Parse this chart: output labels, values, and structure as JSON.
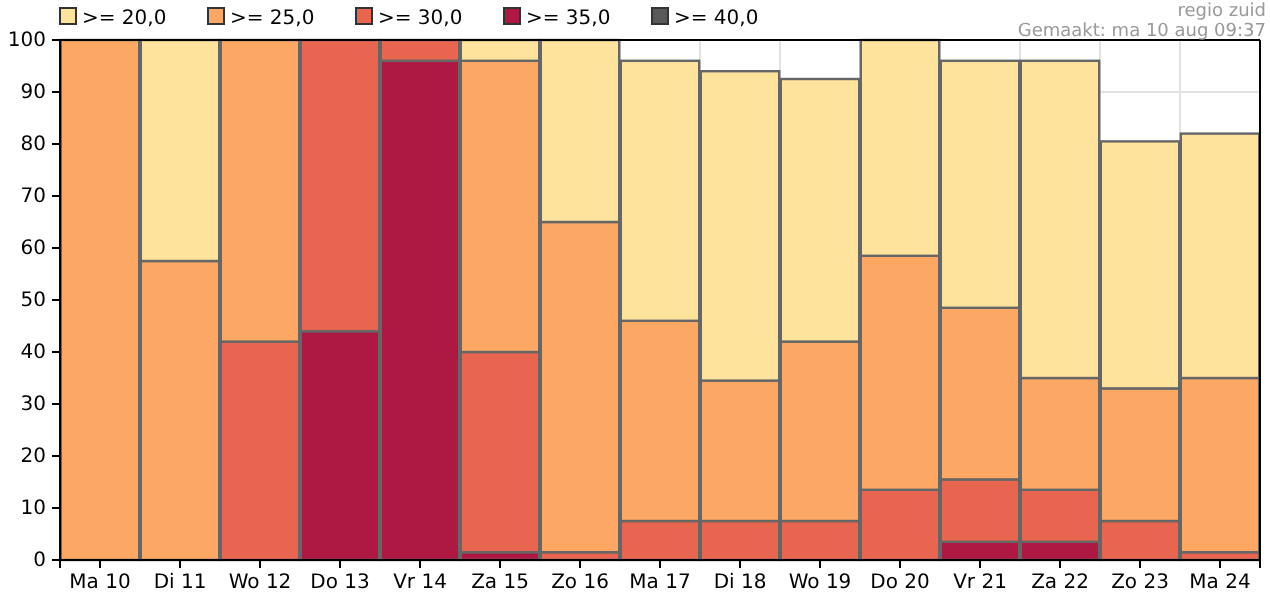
{
  "chart_data": {
    "type": "bar",
    "stacked": true,
    "categories": [
      "Ma 10",
      "Di 11",
      "Wo 12",
      "Do 13",
      "Vr 14",
      "Za 15",
      "Zo 16",
      "Ma 17",
      "Di 18",
      "Wo 19",
      "Do 20",
      "Vr 21",
      "Za 22",
      "Zo 23",
      "Ma 24"
    ],
    "series": [
      {
        "name": ">= 40,0",
        "color": "#5a5a5a",
        "values": [
          0,
          0,
          0,
          0,
          0,
          0,
          0,
          0,
          0,
          0,
          0,
          0,
          0,
          0,
          0
        ]
      },
      {
        "name": ">= 35,0",
        "color": "#ad1943",
        "values": [
          0,
          0,
          0,
          44,
          96,
          1.5,
          0,
          0,
          0,
          0,
          0,
          3.5,
          3.5,
          0,
          0
        ]
      },
      {
        "name": ">= 30,0",
        "color": "#e86550",
        "values": [
          0,
          0,
          42,
          56,
          4,
          38.5,
          1.5,
          7.5,
          7.5,
          7.5,
          13.5,
          12,
          10,
          7.5,
          1.5
        ]
      },
      {
        "name": ">= 25,0",
        "color": "#fca864",
        "values": [
          100,
          57.5,
          58,
          0,
          0,
          56,
          63.5,
          38.5,
          27,
          34.5,
          45,
          33,
          21.5,
          25.5,
          33.5
        ]
      },
      {
        "name": ">= 20,0",
        "color": "#fee39c",
        "values": [
          0,
          42.5,
          0,
          0,
          0,
          4,
          35,
          50,
          59.5,
          50.5,
          41.5,
          47.5,
          61,
          47.5,
          47
        ]
      }
    ],
    "ylim": [
      0,
      100
    ],
    "yticks": [
      0,
      10,
      20,
      30,
      40,
      50,
      60,
      70,
      80,
      90,
      100
    ],
    "grid": true,
    "legend": "top left",
    "annotations": [
      "regio zuid",
      "Gemaakt: ma 10 aug 09:37"
    ]
  }
}
